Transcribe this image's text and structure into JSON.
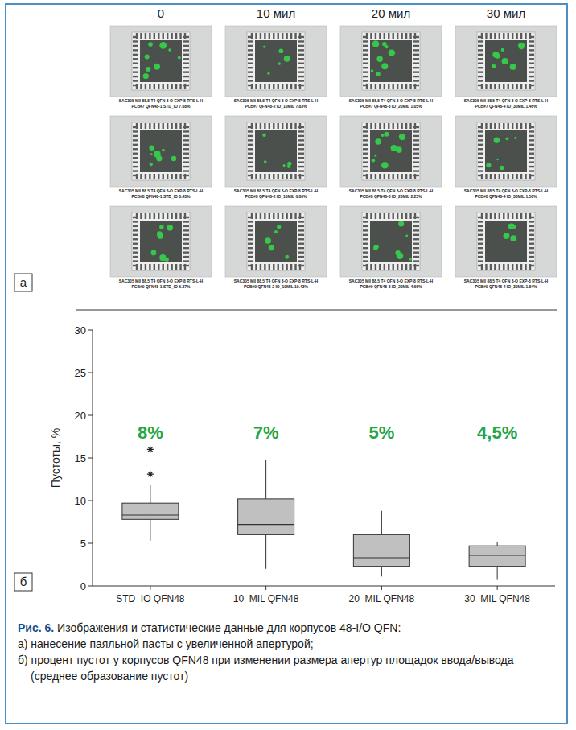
{
  "panel_a": {
    "label": "а",
    "columns": [
      "0",
      "10 мил",
      "20 мил",
      "30 мил"
    ],
    "images": [
      [
        [
          "SAC305 MII 88.5 T4 QFN 3-O EXP-8 RTS-L-H",
          "PCB#7 QFN48-1 STD_IO 7.68%"
        ],
        [
          "SAC305 MII 88.5 T4 QFN 3-O EXP-8 RTS-L-H",
          "PCB#7 QFN48-2 IO_10MIL 7.83%"
        ],
        [
          "SAC305 MII 88.5 T4 QFN 3-O EXP-8 RTS-L-H",
          "PCB#7 QFN48-3 IO_20MIL 1.05%"
        ],
        [
          "SAC305 MII 88.5 T4 QFN 3-O EXP-8 RTS-L-H",
          "PCB#7 QFN48-4 IO_30MIL 1.46%"
        ]
      ],
      [
        [
          "SAC305 MII 88.5 T4 QFN 3-O EXP-8 RTS-L-H",
          "PCB#8 QFN48-1 STD_IO 8.43%"
        ],
        [
          "SAC305 MII 88.5 T4 QFN 3-O EXP-8 RTS-L-H",
          "PCB#8 QFN48-2 IO_10MIL 6.86%"
        ],
        [
          "SAC305 MII 88.5 T4 QFN 3-O EXP-8 RTS-L-H",
          "PCB#8 QFN48-3 IO_20MIL 2.25%"
        ],
        [
          "SAC305 MII 88.5 T4 QFN 3-O EXP-8 RTS-L-H",
          "PCB#8 QFN48-4 IO_30MIL 1.50%"
        ]
      ],
      [
        [
          "SAC305 MII 88.5 T4 QFN 3-O EXP-8 RTS-L-H",
          "PCB#9 QFN48-1 STD_IO 6.37%"
        ],
        [
          "SAC305 MII 88.5 T4 QFN 3-O EXP-8 RTS-L-H",
          "PCB#9 QFN48-2 IO_10MIL 10.43%"
        ],
        [
          "SAC305 MII 88.5 T4 QFN 3-O EXP-8 RTS-L-H",
          "PCB#9 QFN48-3 IO_20MIL 4.66%"
        ],
        [
          "SAC305 MII 88.5 T4 QFN 3-O EXP-8 RTS-L-H",
          "PCB#9 QFN48-4 IO_30MIL 1.84%"
        ]
      ]
    ]
  },
  "panel_b": {
    "label": "б"
  },
  "chart_data": {
    "type": "box",
    "y_label": "Пустоты, %",
    "categories": [
      "STD_IO QFN48",
      "10_MIL QFN48",
      "20_MIL QFN48",
      "30_MIL QFN48"
    ],
    "whisker_low": [
      5.3,
      2.0,
      1.1,
      0.7
    ],
    "q1": [
      7.8,
      6.0,
      2.3,
      2.3
    ],
    "median": [
      8.3,
      7.2,
      3.3,
      3.6
    ],
    "q3": [
      9.7,
      10.2,
      6.0,
      4.7
    ],
    "whisker_high": [
      11.8,
      14.8,
      8.8,
      5.2
    ],
    "outliers": [
      [
        13.1,
        16.0
      ],
      [],
      [],
      []
    ],
    "annotations": [
      "8%",
      "7%",
      "5%",
      "4,5%"
    ],
    "color": "#c0c0c0",
    "ylim": [
      0,
      30
    ],
    "yticks": [
      0,
      5,
      10,
      15,
      20,
      25,
      30
    ],
    "grid": false
  },
  "caption": {
    "figure": "Рис. 6.",
    "title": "Изображения и статистические данные для корпусов 48-I/O QFN:",
    "items": [
      "а) нанесение паяльной пасты с увеличенной апертурой;",
      "б) процент пустот у корпусов QFN48 при изменении размера апертур площадок ввода/вывода (среднее образование пустот)"
    ]
  }
}
